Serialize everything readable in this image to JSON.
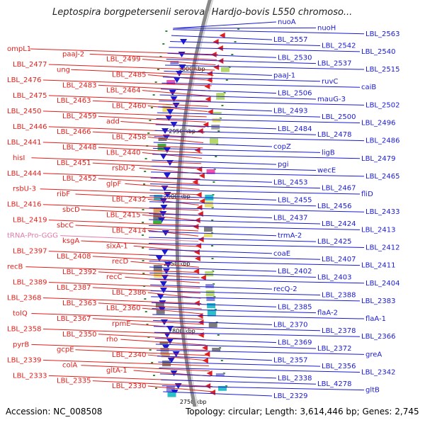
{
  "title": "Leptospira borgpetersenii serovar Hardjo-bovis L550 chromoso...",
  "accession": "Accession: NC_008508",
  "topology": "Topology: circular; Length: 3,614,446 bp; Genes: 2,745",
  "colors": {
    "forward_strand": "#e0201c",
    "reverse_strand": "#1a1ad0",
    "trna_label": "#e07aa8",
    "backbone": "#888888",
    "tick": "#2e8b2e"
  },
  "scale_labels": [
    "3000 kbp",
    "2950 kbp",
    "2900 kbp",
    "2850 kbp",
    "2800 kbp",
    "2750 kbp"
  ],
  "left_labels": [
    {
      "text": "ompL1",
      "kind": "gene"
    },
    {
      "text": "paaJ-2",
      "kind": "gene"
    },
    {
      "text": "LBL_2499",
      "kind": "gene"
    },
    {
      "text": "LBL_2477",
      "kind": "gene"
    },
    {
      "text": "ung",
      "kind": "gene"
    },
    {
      "text": "LBL_2485",
      "kind": "gene"
    },
    {
      "text": "LBL_2476",
      "kind": "gene"
    },
    {
      "text": "LBL_2483",
      "kind": "gene"
    },
    {
      "text": "LBL_2464",
      "kind": "gene"
    },
    {
      "text": "LBL_2475",
      "kind": "gene"
    },
    {
      "text": "LBL_2463",
      "kind": "gene"
    },
    {
      "text": "LBL_2460",
      "kind": "gene"
    },
    {
      "text": "LBL_2450",
      "kind": "gene"
    },
    {
      "text": "LBL_2459",
      "kind": "gene"
    },
    {
      "text": "add",
      "kind": "gene"
    },
    {
      "text": "LBL_2446",
      "kind": "gene"
    },
    {
      "text": "LBL_2466",
      "kind": "gene"
    },
    {
      "text": "LBL_2458",
      "kind": "gene"
    },
    {
      "text": "LBL_2441",
      "kind": "gene"
    },
    {
      "text": "LBL_2448",
      "kind": "gene"
    },
    {
      "text": "LBL_2440",
      "kind": "gene"
    },
    {
      "text": "hisI",
      "kind": "gene"
    },
    {
      "text": "LBL_2451",
      "kind": "gene"
    },
    {
      "text": "rsbU-2",
      "kind": "gene"
    },
    {
      "text": "LBL_2444",
      "kind": "gene"
    },
    {
      "text": "LBL_2452",
      "kind": "gene"
    },
    {
      "text": "glpF",
      "kind": "gene"
    },
    {
      "text": "rsbU-3",
      "kind": "gene"
    },
    {
      "text": "ribF",
      "kind": "gene"
    },
    {
      "text": "LBL_2432",
      "kind": "gene"
    },
    {
      "text": "LBL_2416",
      "kind": "gene"
    },
    {
      "text": "sbcD",
      "kind": "gene"
    },
    {
      "text": "LBL_2415",
      "kind": "gene"
    },
    {
      "text": "LBL_2419",
      "kind": "gene"
    },
    {
      "text": "sbcC",
      "kind": "gene"
    },
    {
      "text": "LBL_2414",
      "kind": "gene"
    },
    {
      "text": "tRNA-Pro-GGG",
      "kind": "trna"
    },
    {
      "text": "ksgA",
      "kind": "gene"
    },
    {
      "text": "sixA-1",
      "kind": "gene"
    },
    {
      "text": "LBL_2397",
      "kind": "gene"
    },
    {
      "text": "LBL_2408",
      "kind": "gene"
    },
    {
      "text": "recD",
      "kind": "gene"
    },
    {
      "text": "recB",
      "kind": "gene"
    },
    {
      "text": "LBL_2392",
      "kind": "gene"
    },
    {
      "text": "recC",
      "kind": "gene"
    },
    {
      "text": "LBL_2389",
      "kind": "gene"
    },
    {
      "text": "LBL_2387",
      "kind": "gene"
    },
    {
      "text": "LBL_2386",
      "kind": "gene"
    },
    {
      "text": "LBL_2368",
      "kind": "gene"
    },
    {
      "text": "LBL_2363",
      "kind": "gene"
    },
    {
      "text": "LBL_2360",
      "kind": "gene"
    },
    {
      "text": "tolQ",
      "kind": "gene"
    },
    {
      "text": "LBL_2367",
      "kind": "gene"
    },
    {
      "text": "rpmE",
      "kind": "gene"
    },
    {
      "text": "LBL_2358",
      "kind": "gene"
    },
    {
      "text": "LBL_2350",
      "kind": "gene"
    },
    {
      "text": "rho",
      "kind": "gene"
    },
    {
      "text": "pyrB",
      "kind": "gene"
    },
    {
      "text": "gcpE",
      "kind": "gene"
    },
    {
      "text": "LBL_2340",
      "kind": "gene"
    },
    {
      "text": "LBL_2339",
      "kind": "gene"
    },
    {
      "text": "colA",
      "kind": "gene"
    },
    {
      "text": "gltA-1",
      "kind": "gene"
    },
    {
      "text": "LBL_2333",
      "kind": "gene"
    },
    {
      "text": "LBL_2335",
      "kind": "gene"
    },
    {
      "text": "LBL_2330",
      "kind": "gene"
    }
  ],
  "right_labels": [
    "nuoA",
    "nuoH",
    "LBL_2563",
    "LBL_2557",
    "LBL_2542",
    "LBL_2540",
    "LBL_2530",
    "LBL_2537",
    "LBL_2515",
    "paaJ-1",
    "ruvC",
    "caiB",
    "LBL_2506",
    "mauG-3",
    "LBL_2502",
    "LBL_2493",
    "LBL_2500",
    "LBL_2496",
    "LBL_2484",
    "LBL_2478",
    "LBL_2486",
    "copZ",
    "ligB",
    "LBL_2479",
    "pgi",
    "wecE",
    "LBL_2465",
    "LBL_2453",
    "LBL_2467",
    "fliD",
    "LBL_2455",
    "LBL_2456",
    "LBL_2433",
    "LBL_2437",
    "LBL_2424",
    "LBL_2413",
    "trmA-2",
    "LBL_2425",
    "LBL_2412",
    "coaE",
    "LBL_2407",
    "LBL_2411",
    "LBL_2402",
    "LBL_2403",
    "LBL_2404",
    "recQ-2",
    "LBL_2388",
    "LBL_2383",
    "LBL_2385",
    "flaA-2",
    "flaA-1",
    "LBL_2370",
    "LBL_2378",
    "LBL_2366",
    "LBL_2369",
    "LBL_2372",
    "greA",
    "LBL_2357",
    "LBL_2356",
    "LBL_2342",
    "LBL_2338",
    "LBL_4278",
    "gltB",
    "LBL_2329"
  ]
}
